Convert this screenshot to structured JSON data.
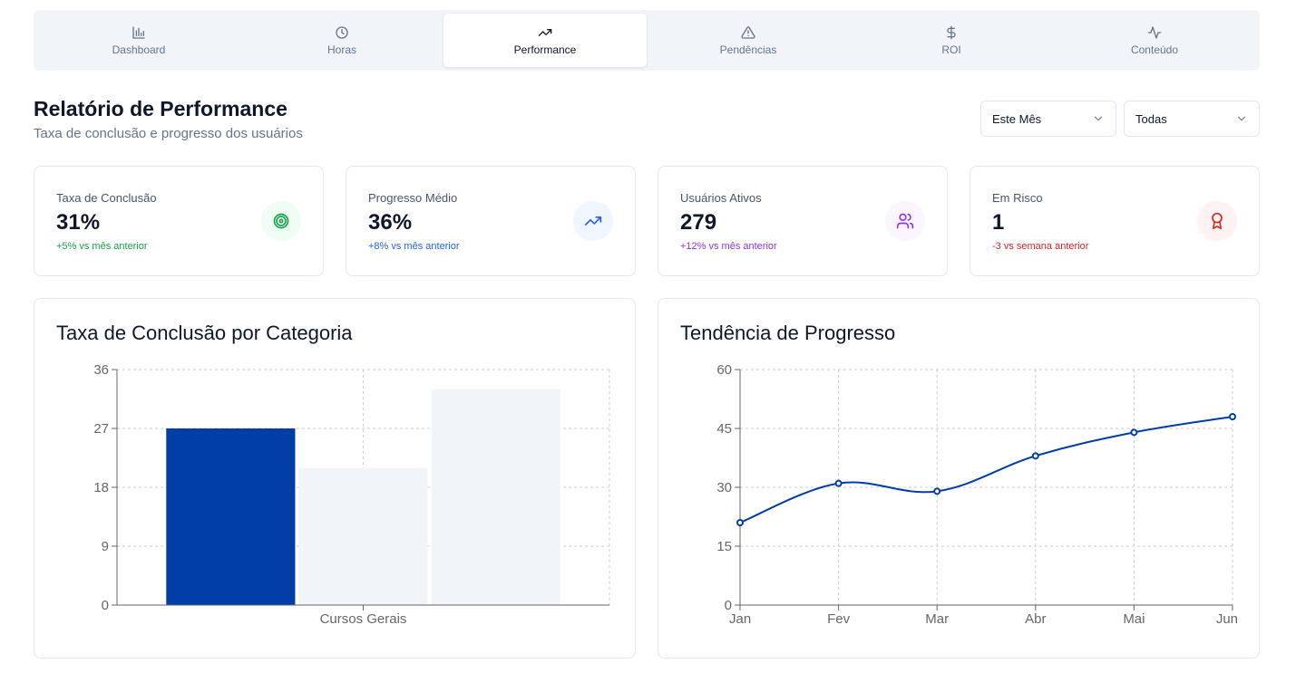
{
  "tabs": [
    {
      "label": "Dashboard",
      "icon": "bar-chart-icon",
      "active": false
    },
    {
      "label": "Horas",
      "icon": "clock-icon",
      "active": false
    },
    {
      "label": "Performance",
      "icon": "trending-up-icon",
      "active": true
    },
    {
      "label": "Pendências",
      "icon": "alert-triangle-icon",
      "active": false
    },
    {
      "label": "ROI",
      "icon": "dollar-icon",
      "active": false
    },
    {
      "label": "Conteúdo",
      "icon": "activity-icon",
      "active": false
    }
  ],
  "header": {
    "title": "Relatório de Performance",
    "subtitle": "Taxa de conclusão e progresso dos usuários"
  },
  "filters": {
    "period": "Este Mês",
    "category": "Todas"
  },
  "metrics": [
    {
      "label": "Taxa de Conclusão",
      "value": "31%",
      "delta": "+5% vs mês anterior",
      "icon": "target-icon",
      "color": "#16a34a",
      "bg": "#f0fdf4"
    },
    {
      "label": "Progresso Médio",
      "value": "36%",
      "delta": "+8% vs mês anterior",
      "icon": "trending-up-icon",
      "color": "#2563eb",
      "bg": "#eff6ff"
    },
    {
      "label": "Usuários Ativos",
      "value": "279",
      "delta": "+12% vs mês anterior",
      "icon": "users-icon",
      "color": "#9333ea",
      "bg": "#faf5ff"
    },
    {
      "label": "Em Risco",
      "value": "1",
      "delta": "-3 vs semana anterior",
      "icon": "award-icon",
      "color": "#dc2626",
      "bg": "#fef2f2"
    }
  ],
  "charts": {
    "bar_title": "Taxa de Conclusão por Categoria",
    "line_title": "Tendência de Progresso"
  },
  "chart_data": [
    {
      "type": "bar",
      "title": "Taxa de Conclusão por Categoria",
      "categories": [
        "Cursos Gerais"
      ],
      "series": [
        {
          "values": [
            27
          ],
          "color": "#003da5"
        },
        {
          "values": [
            21
          ],
          "color": "#f1f4f9"
        },
        {
          "values": [
            33
          ],
          "color": "#f1f4f9"
        }
      ],
      "ylim": [
        0,
        36
      ],
      "yticks": [
        0,
        9,
        18,
        27,
        36
      ],
      "grid": true
    },
    {
      "type": "line",
      "title": "Tendência de Progresso",
      "x": [
        "Jan",
        "Fev",
        "Mar",
        "Abr",
        "Mai",
        "Jun"
      ],
      "series": [
        {
          "values": [
            21,
            31,
            29,
            38,
            44,
            48
          ],
          "color": "#003da5"
        }
      ],
      "ylim": [
        0,
        60
      ],
      "yticks": [
        0,
        15,
        30,
        45,
        60
      ],
      "grid": true
    }
  ]
}
